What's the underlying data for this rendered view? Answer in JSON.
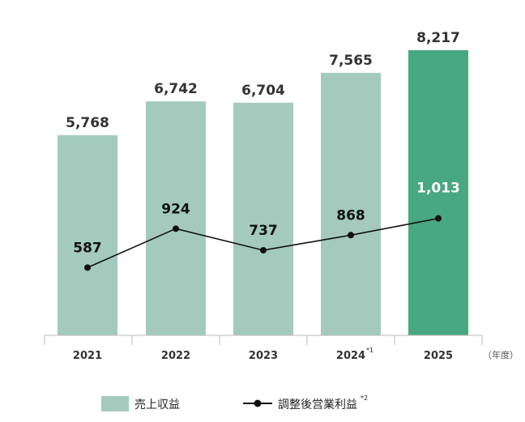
{
  "chart_data": {
    "type": "bar",
    "categories": [
      "2021",
      "2022",
      "2023",
      "2024",
      "2025"
    ],
    "category_notes": [
      "",
      "",
      "",
      "*1",
      ""
    ],
    "x_unit": "（年度）",
    "series": [
      {
        "name": "売上収益",
        "kind": "bar",
        "values": [
          5768,
          6742,
          6704,
          7565,
          8217
        ],
        "labels": [
          "5,768",
          "6,742",
          "6,704",
          "7,565",
          "8,217"
        ],
        "colors": [
          "#a3cabd",
          "#a3cabd",
          "#a3cabd",
          "#a3cabd",
          "#48a882"
        ]
      },
      {
        "name": "調整後営業利益",
        "name_note": "*2",
        "kind": "line",
        "values": [
          587,
          924,
          737,
          868,
          1013
        ],
        "labels": [
          "587",
          "924",
          "737",
          "868",
          "1,013"
        ],
        "color": "#111111"
      }
    ],
    "bar_ylim": [
      0,
      8217
    ],
    "line_ylim": [
      0,
      2470
    ],
    "legend_position": "bottom",
    "grid": false
  }
}
